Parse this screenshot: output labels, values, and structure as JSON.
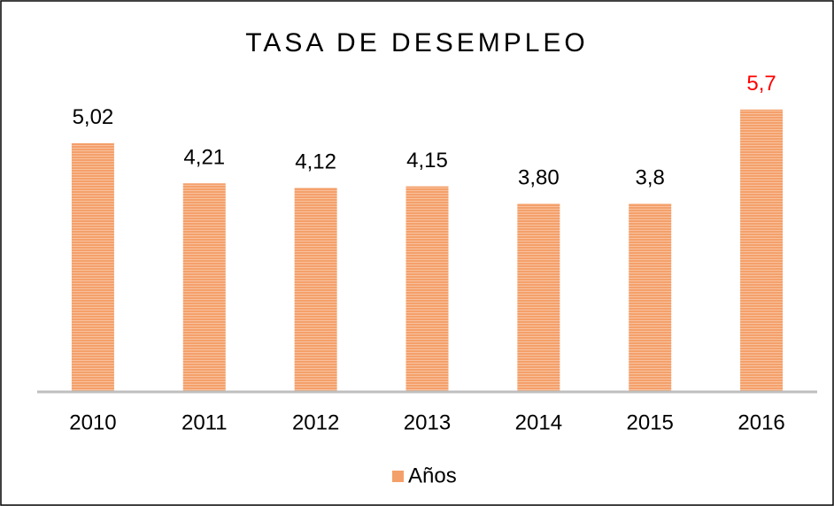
{
  "chart_data": {
    "type": "bar",
    "title": "TASA DE DESEMPLEO",
    "categories": [
      "2010",
      "2011",
      "2012",
      "2013",
      "2014",
      "2015",
      "2016"
    ],
    "series": [
      {
        "name": "Años",
        "color": "#f4a06a",
        "values": [
          5.02,
          4.21,
          4.12,
          4.15,
          3.8,
          3.8,
          5.7
        ],
        "value_labels": [
          "5,02",
          "4,21",
          "4,12",
          "4,15",
          "3,80",
          "3,8",
          "5,7"
        ],
        "value_label_colors": [
          "#000000",
          "#000000",
          "#000000",
          "#000000",
          "#000000",
          "#000000",
          "#ff0000"
        ]
      }
    ],
    "ylim": [
      0,
      7
    ],
    "legend": "bottom",
    "grid": false
  }
}
